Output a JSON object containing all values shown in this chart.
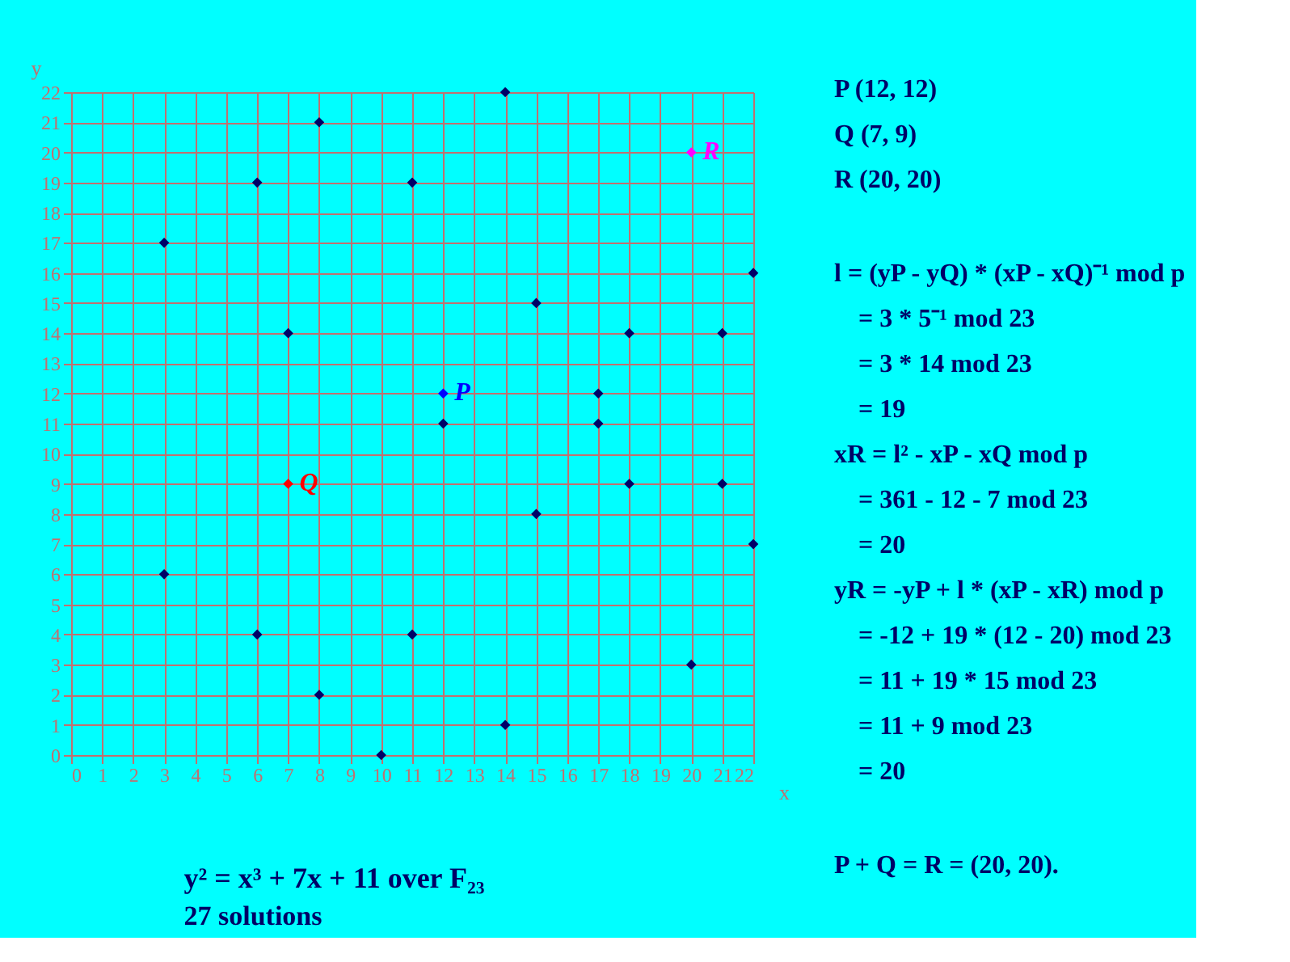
{
  "chart_data": {
    "type": "scatter",
    "title": "y² = x³ + 7x + 11 over F₂₃",
    "subtitle": "27 solutions",
    "xlabel": "x",
    "ylabel": "y",
    "xlim": [
      0,
      22
    ],
    "ylim": [
      0,
      22
    ],
    "xticks": [
      0,
      1,
      2,
      3,
      4,
      5,
      6,
      7,
      8,
      9,
      10,
      11,
      12,
      13,
      14,
      15,
      16,
      17,
      18,
      19,
      20,
      21,
      22
    ],
    "yticks": [
      0,
      1,
      2,
      3,
      4,
      5,
      6,
      7,
      8,
      9,
      10,
      11,
      12,
      13,
      14,
      15,
      16,
      17,
      18,
      19,
      20,
      21,
      22
    ],
    "grid": true,
    "marker": "diamond",
    "series": [
      {
        "color": "#000066",
        "x": [
          3,
          3,
          6,
          6,
          7,
          8,
          8,
          10,
          11,
          11,
          12,
          14,
          14,
          15,
          15,
          17,
          17,
          18,
          18,
          20,
          21,
          21,
          22,
          22
        ],
        "values": [
          6,
          17,
          4,
          19,
          14,
          2,
          21,
          0,
          4,
          19,
          11,
          1,
          22,
          8,
          15,
          11,
          12,
          9,
          14,
          3,
          9,
          14,
          7,
          16
        ]
      },
      {
        "name": "P",
        "color": "#0000ff",
        "x": [
          12
        ],
        "values": [
          12
        ]
      },
      {
        "name": "Q",
        "color": "#ff0000",
        "x": [
          7
        ],
        "values": [
          9
        ]
      },
      {
        "name": "R",
        "color": "#ff00ff",
        "x": [
          20
        ],
        "values": [
          20
        ]
      }
    ],
    "annotations": [
      "P (12, 12)",
      "Q (7, 9)",
      "R (20, 20)",
      "l = (yP - yQ) * (xP - xQ)⁻¹ mod p",
      "= 3 * 5⁻¹ mod 23",
      "= 3 * 14 mod 23",
      "= 19",
      "xR = l² - xP - xQ mod p",
      "= 361 - 12 - 7 mod 23",
      "= 20",
      "yR = -yP + l * (xP - xR) mod p",
      "= -12 + 19 * (12 - 20) mod 23",
      "= 11 + 19 * 15 mod 23",
      "= 11 + 9 mod 23",
      "= 20",
      "P + Q = R = (20, 20)."
    ]
  }
}
